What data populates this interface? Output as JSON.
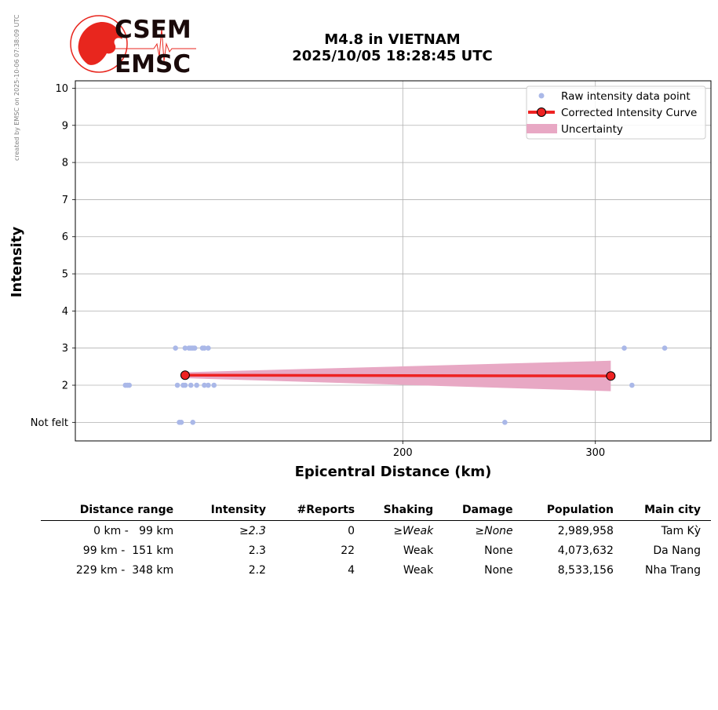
{
  "credit": "created by EMSC on 2025-10-06 07:38:09 UTC",
  "logo": {
    "top": "CSEM",
    "bottom": "EMSC"
  },
  "title_line1": "M4.8 in VIETNAM",
  "title_line2": "2025/10/05 18:28:45 UTC",
  "colors": {
    "raw": "#aab8e8",
    "curve": "#ee2222",
    "uncertainty": "#e8a8c4",
    "logo_red": "#e8261e"
  },
  "chart_data": {
    "type": "scatter",
    "xlabel": "Epicentral Distance (km)",
    "ylabel": "Intensity",
    "xlim": [
      30,
      360
    ],
    "ylim": [
      0.5,
      10.2
    ],
    "xticks": [
      200,
      300
    ],
    "yticks": [
      1,
      2,
      3,
      4,
      5,
      6,
      7,
      8,
      9,
      10
    ],
    "ytick_labels": [
      "Not felt",
      "2",
      "3",
      "4",
      "5",
      "6",
      "7",
      "8",
      "9",
      "10"
    ],
    "grid": true,
    "legend_position": "top-right",
    "legend": [
      "Raw intensity data point",
      "Corrected Intensity Curve",
      "Uncertainty"
    ],
    "raw_points": [
      [
        56,
        2
      ],
      [
        57,
        2
      ],
      [
        58,
        2
      ],
      [
        82,
        3
      ],
      [
        87,
        3
      ],
      [
        89,
        3
      ],
      [
        90,
        3
      ],
      [
        91,
        3
      ],
      [
        92,
        3
      ],
      [
        96,
        3
      ],
      [
        97,
        3
      ],
      [
        99,
        3
      ],
      [
        83,
        2
      ],
      [
        86,
        2
      ],
      [
        87,
        2
      ],
      [
        90,
        2
      ],
      [
        93,
        2
      ],
      [
        97,
        2
      ],
      [
        99,
        2
      ],
      [
        102,
        2
      ],
      [
        84,
        1
      ],
      [
        85,
        1
      ],
      [
        91,
        1
      ],
      [
        253,
        1
      ],
      [
        315,
        3
      ],
      [
        319,
        2
      ],
      [
        336,
        3
      ]
    ],
    "curve": [
      [
        87,
        2.27
      ],
      [
        308,
        2.25
      ]
    ],
    "uncertainty": [
      {
        "x": 87,
        "lower": 2.19,
        "upper": 2.35
      },
      {
        "x": 308,
        "lower": 1.84,
        "upper": 2.66
      }
    ]
  },
  "table": {
    "headers": [
      "Distance range",
      "Intensity",
      "#Reports",
      "Shaking",
      "Damage",
      "Population",
      "Main city"
    ],
    "rows": [
      {
        "range": "0 km -   99 km",
        "intensity": "≥2.3",
        "reports": "0",
        "shaking": "≥Weak",
        "damage": "≥None",
        "population": "2,989,958",
        "city": "Tam Kỳ"
      },
      {
        "range": "99 km -  151 km",
        "intensity": "2.3",
        "reports": "22",
        "shaking": "Weak",
        "damage": "None",
        "population": "4,073,632",
        "city": "Da Nang"
      },
      {
        "range": "229 km -  348 km",
        "intensity": "2.2",
        "reports": "4",
        "shaking": "Weak",
        "damage": "None",
        "population": "8,533,156",
        "city": "Nha Trang"
      }
    ]
  }
}
